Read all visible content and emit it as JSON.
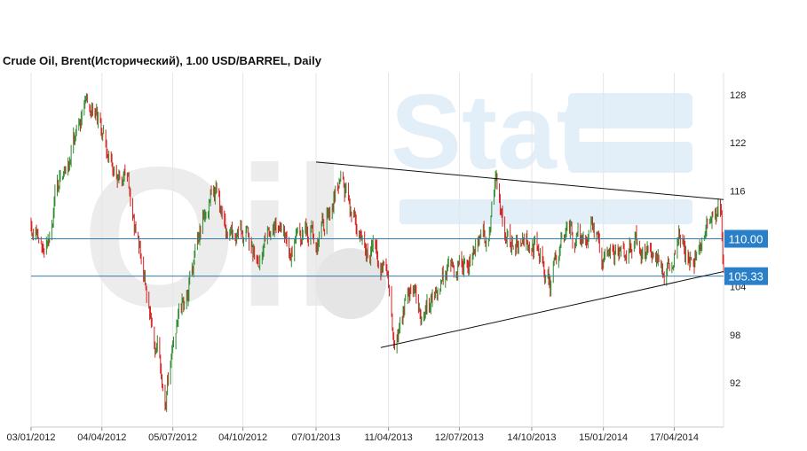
{
  "chart_data": {
    "type": "candlestick",
    "title": "Crude Oil, Brent(Исторический), 1.00 USD/BARREL, Daily",
    "xlabel": "",
    "ylabel": "",
    "ylim": [
      86.5,
      130.5
    ],
    "y_ticks": [
      128,
      122,
      116,
      104,
      98,
      92
    ],
    "x_ticks": [
      "03/01/2012",
      "04/04/2012",
      "05/07/2012",
      "04/10/2012",
      "07/01/2013",
      "11/04/2013",
      "12/07/2013",
      "14/10/2013",
      "15/01/2014",
      "17/04/2014"
    ],
    "x_range": [
      "2012-01-03",
      "2014-06-20"
    ],
    "grid": "vertical",
    "watermark": "OilStat",
    "price_markers": [
      {
        "label": "110.00",
        "value": 110.0,
        "color": "#2a7fc9"
      },
      {
        "label": "105.33",
        "value": 105.33,
        "color": "#2a7fc9"
      }
    ],
    "trend_lines": [
      {
        "from": {
          "date": "2013-01-07",
          "value": 119.6
        },
        "to": {
          "date": "2014-06-20",
          "value": 114.9
        }
      },
      {
        "from": {
          "date": "2013-04-01",
          "value": 96.4
        },
        "to": {
          "date": "2014-06-20",
          "value": 105.9
        }
      }
    ],
    "series": [
      {
        "up_color": "#2e8b2e",
        "down_color": "#d62020",
        "anchors": [
          [
            "2012-01-03",
            112.0
          ],
          [
            "2012-01-20",
            110.5
          ],
          [
            "2012-02-10",
            117.0
          ],
          [
            "2012-03-05",
            124.5
          ],
          [
            "2012-03-15",
            126.5
          ],
          [
            "2012-04-04",
            124.0
          ],
          [
            "2012-04-25",
            119.0
          ],
          [
            "2012-05-10",
            115.5
          ],
          [
            "2012-05-25",
            108.0
          ],
          [
            "2012-06-10",
            98.0
          ],
          [
            "2012-06-25",
            91.0
          ],
          [
            "2012-07-05",
            97.0
          ],
          [
            "2012-07-25",
            103.0
          ],
          [
            "2012-08-15",
            112.5
          ],
          [
            "2012-08-30",
            114.5
          ],
          [
            "2012-09-20",
            110.0
          ],
          [
            "2012-10-10",
            111.0
          ],
          [
            "2012-10-25",
            108.0
          ],
          [
            "2012-11-15",
            110.5
          ],
          [
            "2012-12-05",
            108.0
          ],
          [
            "2012-12-25",
            110.0
          ],
          [
            "2013-01-15",
            111.0
          ],
          [
            "2013-02-10",
            118.5
          ],
          [
            "2013-02-25",
            114.0
          ],
          [
            "2013-03-10",
            110.0
          ],
          [
            "2013-03-25",
            108.0
          ],
          [
            "2013-04-10",
            104.0
          ],
          [
            "2013-04-18",
            98.0
          ],
          [
            "2013-05-05",
            103.0
          ],
          [
            "2013-05-25",
            102.5
          ],
          [
            "2013-06-15",
            103.0
          ],
          [
            "2013-07-05",
            107.5
          ],
          [
            "2013-07-25",
            108.0
          ],
          [
            "2013-08-15",
            109.5
          ],
          [
            "2013-08-28",
            116.0
          ],
          [
            "2013-09-15",
            110.0
          ],
          [
            "2013-10-01",
            108.5
          ],
          [
            "2013-10-20",
            109.5
          ],
          [
            "2013-11-07",
            104.0
          ],
          [
            "2013-11-25",
            110.0
          ],
          [
            "2013-12-15",
            109.5
          ],
          [
            "2014-01-01",
            110.5
          ],
          [
            "2014-01-15",
            107.5
          ],
          [
            "2014-02-05",
            106.5
          ],
          [
            "2014-02-25",
            109.0
          ],
          [
            "2014-03-15",
            108.0
          ],
          [
            "2014-03-28",
            107.0
          ],
          [
            "2014-04-05",
            105.5
          ],
          [
            "2014-04-25",
            109.5
          ],
          [
            "2014-05-10",
            108.5
          ],
          [
            "2014-05-25",
            109.0
          ],
          [
            "2014-06-03",
            111.0
          ],
          [
            "2014-06-12",
            115.0
          ],
          [
            "2014-06-17",
            112.0
          ],
          [
            "2014-06-20",
            106.5
          ]
        ]
      }
    ]
  }
}
